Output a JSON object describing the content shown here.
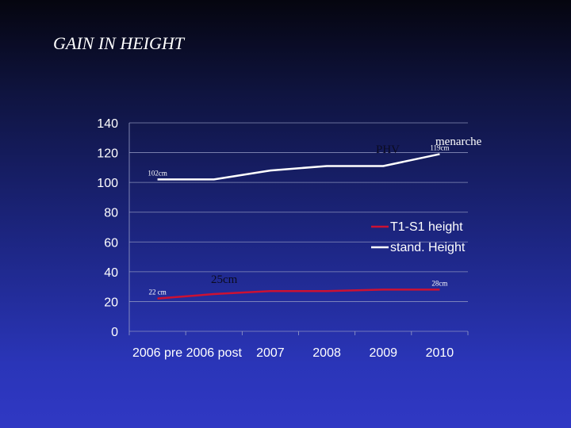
{
  "slide": {
    "title": "GAIN IN HEIGHT"
  },
  "chart_data": {
    "type": "line",
    "categories": [
      "2006 pre",
      "2006 post",
      "2007",
      "2008",
      "2009",
      "2010"
    ],
    "ylim": [
      0,
      140
    ],
    "yticks": [
      0,
      20,
      40,
      60,
      80,
      100,
      120,
      140
    ],
    "grid": true,
    "legend_position": "right",
    "series": [
      {
        "name": "T1-S1 height",
        "color": "#cc1133",
        "values": [
          22,
          25,
          27,
          27,
          28,
          28
        ]
      },
      {
        "name": "stand. Height",
        "color": "#ffffff",
        "values": [
          102,
          102,
          108,
          111,
          111,
          119
        ]
      }
    ],
    "data_labels": [
      {
        "text": "102cm",
        "series": 1,
        "index": 0
      },
      {
        "text": "119cm",
        "series": 1,
        "index": 5
      },
      {
        "text": "22 cm",
        "series": 0,
        "index": 0
      },
      {
        "text": "28cm",
        "series": 0,
        "index": 5
      }
    ],
    "annotations": {
      "phv": "PHV",
      "menarche": "menarche",
      "gain": "25cm"
    }
  },
  "colors": {
    "background_top": "#05050f",
    "background_bottom": "#3038c4",
    "gridline": "#9aa0c8"
  }
}
